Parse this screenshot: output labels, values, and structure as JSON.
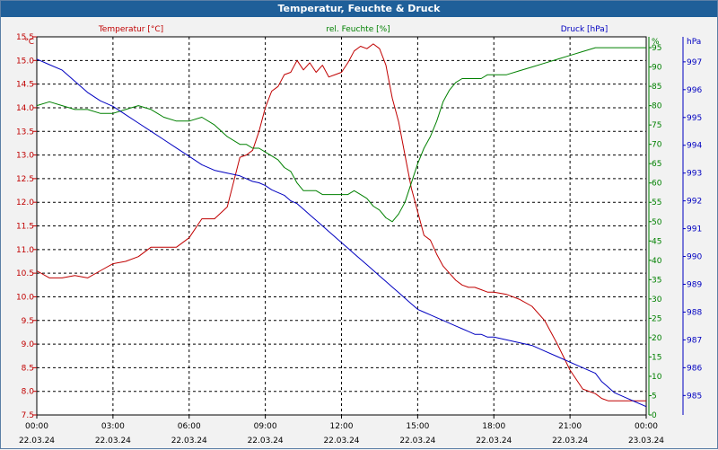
{
  "window": {
    "title": "Temperatur, Feuchte & Druck"
  },
  "chart_data": {
    "type": "line",
    "title": "Temperatur, Feuchte & Druck",
    "grid": true,
    "colors": {
      "temperature": "#c00000",
      "humidity": "#008000",
      "pressure": "#0000c0",
      "grid": "#000000"
    },
    "x_ticks": [
      {
        "time": "00:00",
        "date": "22.03.24"
      },
      {
        "time": "03:00",
        "date": "22.03.24"
      },
      {
        "time": "06:00",
        "date": "22.03.24"
      },
      {
        "time": "09:00",
        "date": "22.03.24"
      },
      {
        "time": "12:00",
        "date": "22.03.24"
      },
      {
        "time": "15:00",
        "date": "22.03.24"
      },
      {
        "time": "18:00",
        "date": "22.03.24"
      },
      {
        "time": "21:00",
        "date": "22.03.24"
      },
      {
        "time": "00:00",
        "date": "23.03.24"
      }
    ],
    "x_hours": [
      0,
      0.5,
      1,
      1.5,
      2,
      2.5,
      3,
      3.5,
      4,
      4.5,
      5,
      5.5,
      6,
      6.5,
      7,
      7.5,
      8,
      8.25,
      8.5,
      8.75,
      9,
      9.25,
      9.5,
      9.75,
      10,
      10.25,
      10.5,
      10.75,
      11,
      11.25,
      11.5,
      11.75,
      12,
      12.25,
      12.5,
      12.75,
      13,
      13.25,
      13.5,
      13.75,
      14,
      14.25,
      14.5,
      14.75,
      15,
      15.25,
      15.5,
      15.75,
      16,
      16.25,
      16.5,
      16.75,
      17,
      17.25,
      17.5,
      17.75,
      18,
      18.5,
      19,
      19.5,
      20,
      20.5,
      21,
      21.5,
      22,
      22.25,
      22.5,
      22.75,
      23,
      23.25,
      23.5,
      24
    ],
    "axes": {
      "temperature": {
        "label": "Temperatur [°C]",
        "unit": "°C",
        "ylim": [
          7.5,
          15.5
        ],
        "ticks": [
          "7.5",
          "8.0",
          "8.5",
          "9.0",
          "9.5",
          "10.0",
          "10.5",
          "11.0",
          "11.5",
          "12.0",
          "12.5",
          "13.0",
          "13.5",
          "14.0",
          "14.5",
          "15.0",
          "15.5"
        ]
      },
      "humidity": {
        "label": "rel. Feuchte [%]",
        "unit": "%",
        "ylim": [
          0,
          97.8
        ],
        "ticks": [
          "0",
          "5",
          "10",
          "15",
          "20",
          "25",
          "30",
          "35",
          "40",
          "45",
          "50",
          "55",
          "60",
          "65",
          "70",
          "75",
          "80",
          "85",
          "90",
          "95"
        ]
      },
      "pressure": {
        "label": "Druck [hPa]",
        "unit": "hPa",
        "ylim": [
          984.3,
          997.9
        ],
        "ticks": [
          "985",
          "986",
          "987",
          "988",
          "989",
          "990",
          "991",
          "992",
          "993",
          "994",
          "995",
          "996",
          "997"
        ]
      }
    },
    "series": [
      {
        "name": "Temperatur [°C]",
        "axis": "temperature",
        "values": [
          10.55,
          10.4,
          10.4,
          10.45,
          10.4,
          10.55,
          10.7,
          10.75,
          10.85,
          11.05,
          11.05,
          11.05,
          11.25,
          11.65,
          11.65,
          11.9,
          12.95,
          13.0,
          13.1,
          13.5,
          14.0,
          14.35,
          14.45,
          14.7,
          14.75,
          15.0,
          14.8,
          14.95,
          14.75,
          14.9,
          14.65,
          14.7,
          14.75,
          14.95,
          15.2,
          15.3,
          15.25,
          15.35,
          15.25,
          14.9,
          14.2,
          13.7,
          13.0,
          12.3,
          11.8,
          11.3,
          11.2,
          10.9,
          10.65,
          10.5,
          10.35,
          10.25,
          10.2,
          10.2,
          10.15,
          10.1,
          10.1,
          10.05,
          9.95,
          9.8,
          9.5,
          9.0,
          8.45,
          8.05,
          7.95,
          7.85,
          7.8,
          7.8,
          7.8,
          7.8,
          7.8,
          7.8
        ]
      },
      {
        "name": "rel. Feuchte [%]",
        "axis": "humidity",
        "values": [
          80,
          81,
          80,
          79,
          79,
          78,
          78,
          79,
          80,
          79,
          77,
          76,
          76,
          77,
          75,
          72,
          70,
          70,
          69,
          69,
          68,
          67,
          66,
          64,
          63,
          60,
          58,
          58,
          58,
          57,
          57,
          57,
          57,
          57,
          58,
          57,
          56,
          54,
          53,
          51,
          50,
          52,
          55,
          60,
          65,
          69,
          72,
          76,
          81,
          84,
          86,
          87,
          87,
          87,
          87,
          88,
          88,
          88,
          89,
          90,
          91,
          92,
          93,
          94,
          95,
          95,
          95,
          95,
          95,
          95,
          95,
          95
        ]
      },
      {
        "name": "Druck [hPa]",
        "axis": "pressure",
        "values": [
          997.1,
          996.9,
          996.7,
          996.3,
          995.9,
          995.6,
          995.4,
          995.1,
          994.8,
          994.5,
          994.2,
          993.9,
          993.6,
          993.3,
          993.1,
          993.0,
          992.9,
          992.8,
          992.7,
          992.65,
          992.55,
          992.4,
          992.3,
          992.2,
          992.0,
          991.9,
          991.7,
          991.5,
          991.3,
          991.1,
          990.9,
          990.7,
          990.5,
          990.3,
          990.1,
          989.9,
          989.7,
          989.5,
          989.3,
          989.1,
          988.9,
          988.7,
          988.5,
          988.3,
          988.1,
          988.0,
          987.9,
          987.8,
          987.7,
          987.6,
          987.5,
          987.4,
          987.3,
          987.2,
          987.2,
          987.1,
          987.1,
          987.0,
          986.9,
          986.8,
          986.6,
          986.4,
          986.2,
          986.0,
          985.8,
          985.5,
          985.3,
          985.1,
          985.0,
          984.9,
          984.8,
          984.6
        ]
      }
    ]
  }
}
